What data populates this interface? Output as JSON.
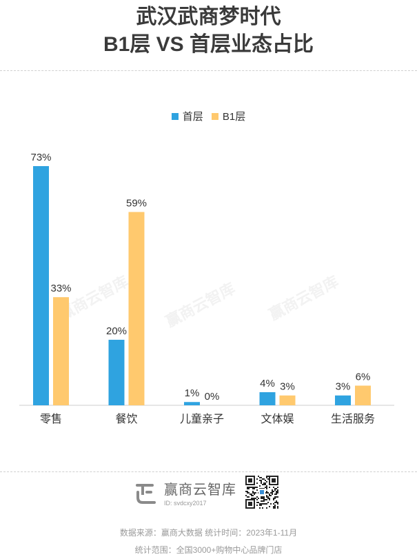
{
  "title_line1": "武汉武商梦时代",
  "title_line2": "B1层 VS 首层业态占比",
  "colors": {
    "first_floor": "#2fa3e0",
    "b1": "#ffc96e"
  },
  "chart_data": {
    "type": "bar",
    "categories": [
      "零售",
      "餐饮",
      "儿童亲子",
      "文体娱",
      "生活服务"
    ],
    "series": [
      {
        "name": "首层",
        "values": [
          73,
          20,
          1,
          4,
          3
        ],
        "labels": [
          "73%",
          "20%",
          "1%",
          "4%",
          "3%"
        ]
      },
      {
        "name": "B1层",
        "values": [
          33,
          59,
          0,
          3,
          6
        ],
        "labels": [
          "33%",
          "59%",
          "0%",
          "3%",
          "6%"
        ]
      }
    ],
    "legend": "top-center",
    "grid": false,
    "ylim": [
      0,
      73
    ]
  },
  "watermark": "赢商云智库",
  "brand": {
    "name": "赢商云智库",
    "id": "ID: svdcxy2017",
    "logo_icon": "winshang-logo-icon",
    "qr_icon": "qr-code-icon"
  },
  "footer": {
    "source": "数据来源：赢商大数据    统计时间：2023年1-11月",
    "scope": "统计范围：全国3000+购物中心品牌门店"
  }
}
